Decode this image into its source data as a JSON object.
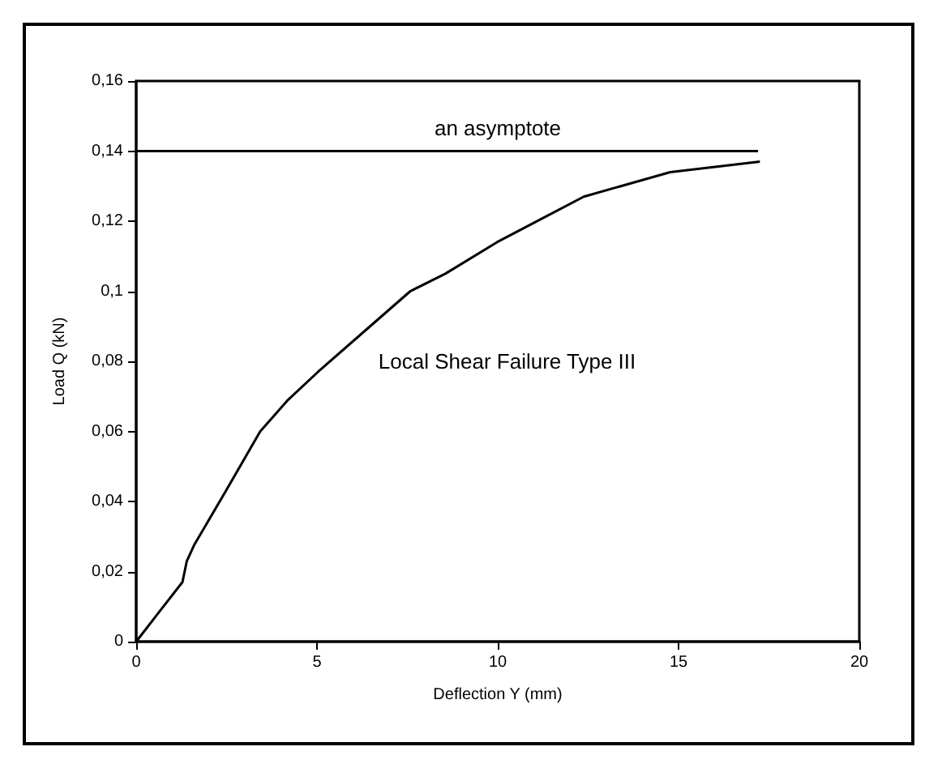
{
  "chart_data": {
    "type": "line",
    "xlabel": "Deflection Y (mm)",
    "ylabel": "Load Q (kN)",
    "xlim": [
      0,
      20
    ],
    "xticks": [
      0,
      5,
      10,
      15,
      20
    ],
    "ylim": [
      0,
      0.16
    ],
    "yticks": [
      "0",
      {
        "value": 0.02,
        "label": "0,02"
      },
      {
        "value": 0.04,
        "label": "0,04"
      },
      {
        "value": 0.06,
        "label": "0,06"
      },
      {
        "value": 0.08,
        "label": "0,08"
      },
      {
        "value": 0.1,
        "label": "0,1"
      },
      {
        "value": 0.12,
        "label": "0,12"
      },
      {
        "value": 0.14,
        "label": "0,14"
      },
      {
        "value": 0.16,
        "label": "0,16"
      }
    ],
    "grid": false,
    "marker": "none",
    "line_style": "solid",
    "series": [
      {
        "color": "#000000",
        "x": [
          0,
          0.6,
          1.28,
          1.4,
          1.6,
          2.48,
          3.43,
          4.2,
          5.03,
          6.47,
          7.58,
          8.55,
          9.98,
          12.38,
          14.77,
          17.25
        ],
        "values": [
          0,
          0.008,
          0.017,
          0.023,
          0.0275,
          0.043,
          0.06,
          0.069,
          0.077,
          0.09,
          0.1,
          0.105,
          0.114,
          0.127,
          0.134,
          0.137
        ]
      },
      {
        "color": "#000000",
        "x": [
          0,
          17.2
        ],
        "values": [
          0.14,
          0.14
        ]
      }
    ],
    "annotations": [
      {
        "text": "an asymptote",
        "x": 10,
        "y": 0.14
      },
      "Local Shear Failure Type III"
    ]
  }
}
